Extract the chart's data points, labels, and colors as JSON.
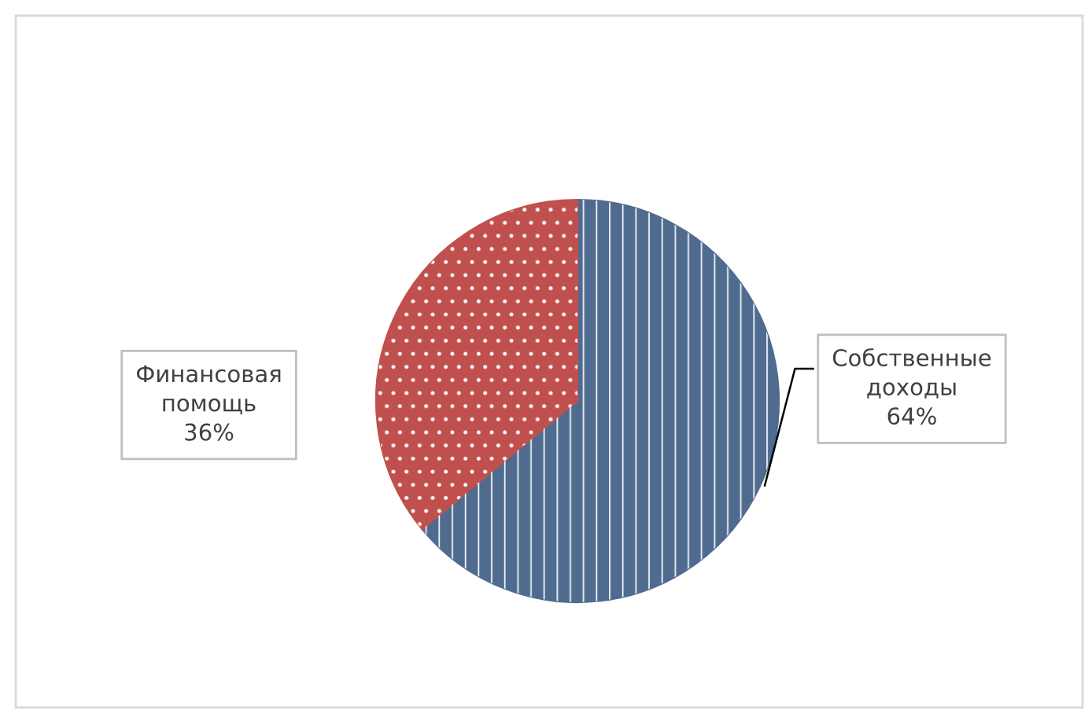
{
  "chart_data": {
    "type": "pie",
    "categories": [
      "Собственные\nдоходы",
      "Финансовая\nпомощь"
    ],
    "values": [
      64,
      36
    ],
    "colors": [
      "#4f6b8f",
      "#c0504d"
    ],
    "value_labels": [
      "64%",
      "36%"
    ],
    "legend": false
  }
}
